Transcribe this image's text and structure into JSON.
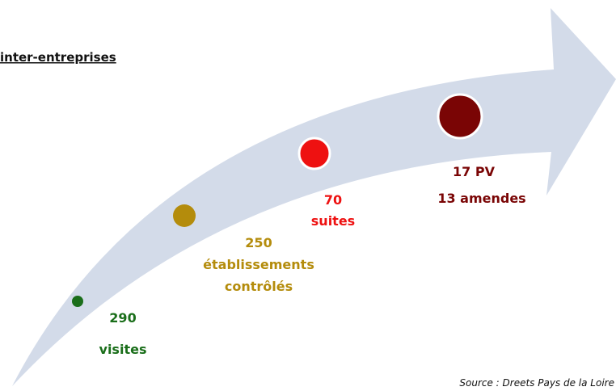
{
  "title": "inter-entreprises",
  "steps": [
    {
      "lines": [
        "290",
        "visites"
      ]
    },
    {
      "lines": [
        "250",
        "établissements",
        "contrôlés"
      ]
    },
    {
      "lines": [
        "70",
        "suites"
      ]
    },
    {
      "lines": [
        "17 PV",
        "13 amendes"
      ]
    }
  ],
  "source": "Source : Dreets Pays de la Loire"
}
